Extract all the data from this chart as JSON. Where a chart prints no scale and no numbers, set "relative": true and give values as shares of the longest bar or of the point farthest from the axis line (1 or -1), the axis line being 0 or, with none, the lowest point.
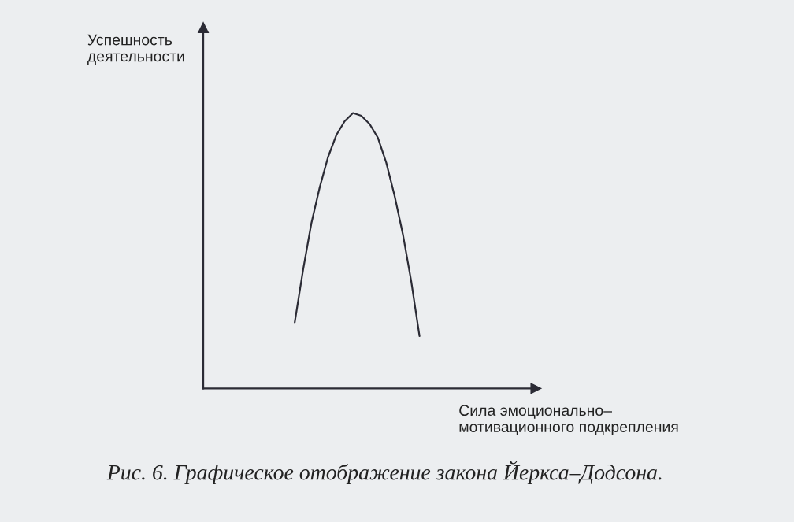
{
  "chart_data": {
    "type": "line",
    "relative": true,
    "title": "Рис. 6. Графическое отображение закона Йеркса–Додсона.",
    "xlabel": "Сила эмоционально–\nмотивационного подкрепления",
    "ylabel": "Успешность\nдеятельности",
    "categories": [
      null,
      null,
      null,
      null,
      null,
      null,
      null,
      null,
      null,
      null,
      null,
      null,
      null,
      null,
      null,
      null,
      null,
      null,
      null,
      null,
      null,
      null,
      null,
      null,
      null,
      null,
      null,
      null,
      null,
      null,
      null,
      null,
      null,
      null,
      null,
      null,
      null,
      null,
      null,
      null,
      null
    ],
    "series": [
      {
        "color": "#2b2b35",
        "values": [
          null,
          null,
          null,
          null,
          null,
          null,
          null,
          null,
          null,
          null,
          null,
          0.24,
          0.43,
          0.6,
          0.73,
          0.84,
          0.92,
          0.97,
          1,
          0.99,
          0.96,
          0.91,
          0.82,
          0.7,
          0.56,
          0.39,
          0.19,
          null,
          null,
          null,
          null,
          null,
          null,
          null,
          null,
          null,
          null,
          null,
          null,
          null,
          null
        ]
      }
    ]
  }
}
